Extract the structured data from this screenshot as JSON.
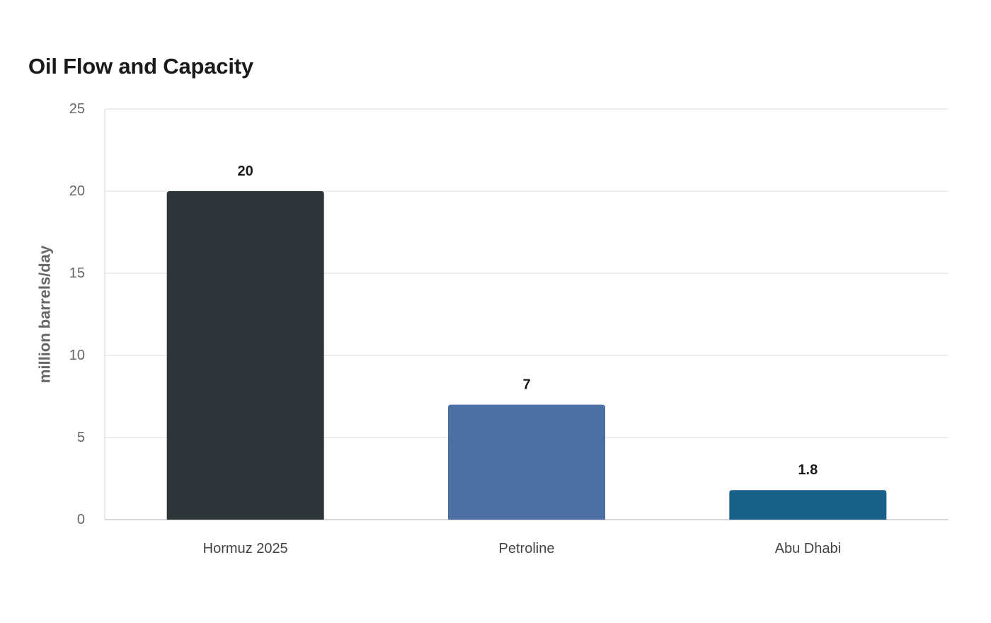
{
  "chart_data": {
    "type": "bar",
    "title": "Oil Flow and Capacity",
    "xlabel": "",
    "ylabel": "million barrels/day",
    "categories": [
      "Hormuz 2025",
      "Petroline",
      "Abu Dhabi"
    ],
    "values": [
      20,
      7,
      1.8
    ],
    "value_labels": [
      "20",
      "7",
      "1.8"
    ],
    "colors": [
      "#2e3538",
      "#4c70a3",
      "#186189"
    ],
    "ylim": [
      0,
      25
    ],
    "yticks": [
      0,
      5,
      10,
      15,
      20,
      25
    ],
    "grid": true,
    "legend": false
  }
}
